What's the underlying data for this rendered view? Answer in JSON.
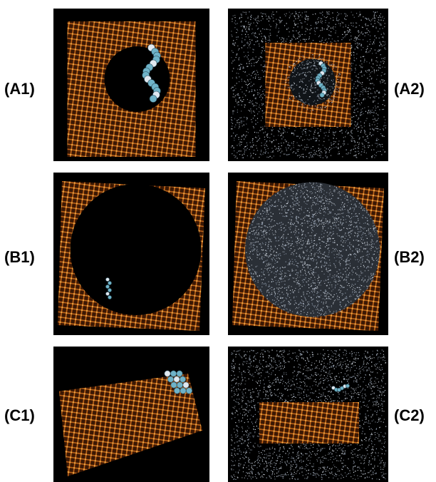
{
  "panels": [
    {
      "id": "A1",
      "label": "(A1)",
      "style": "pore-surface",
      "water": false
    },
    {
      "id": "A2",
      "label": "(A2)",
      "style": "pore-surface",
      "water": true
    },
    {
      "id": "B1",
      "label": "(B1)",
      "style": "large-pore",
      "water": false
    },
    {
      "id": "B2",
      "label": "(B2)",
      "style": "large-pore",
      "water": true
    },
    {
      "id": "C1",
      "label": "(C1)",
      "style": "slab",
      "water": false
    },
    {
      "id": "C2",
      "label": "(C2)",
      "style": "slab",
      "water": true
    }
  ],
  "colors": {
    "background": "#000000",
    "lattice": "#c8681a",
    "lattice_highlight": "#f0b04a",
    "water": "#9aa6b8",
    "molecule": "#6fb3c8",
    "molecule_accent": "#e0e8f0"
  }
}
